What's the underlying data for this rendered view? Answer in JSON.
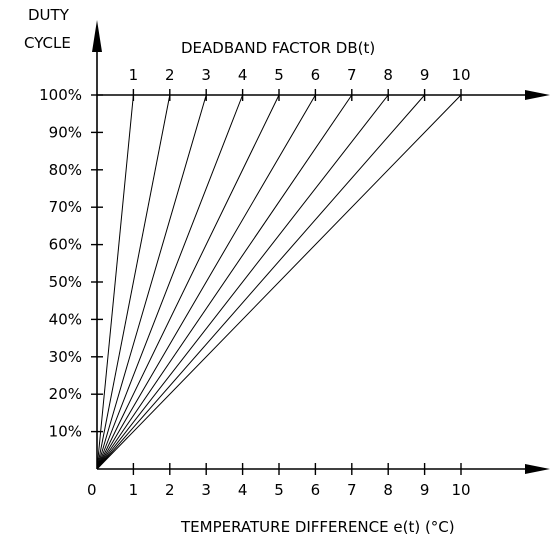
{
  "chart_data": {
    "type": "line",
    "title": "",
    "ylabel_lines": [
      "DUTY",
      "CYCLE"
    ],
    "top_axis_label": "DEADBAND FACTOR DB(t)",
    "xlabel": "TEMPERATURE DIFFERENCE e(t) (°C)",
    "x_origin_label": "0",
    "x_ticks": [
      "1",
      "2",
      "3",
      "4",
      "5",
      "6",
      "7",
      "8",
      "9",
      "10"
    ],
    "y_ticks": [
      "10%",
      "20%",
      "30%",
      "40%",
      "50%",
      "60%",
      "70%",
      "80%",
      "90%",
      "100%"
    ],
    "xlim": [
      0,
      10
    ],
    "ylim": [
      0,
      100
    ],
    "grid": false,
    "series": [
      {
        "name": "1",
        "x": [
          0,
          1
        ],
        "y": [
          0,
          100
        ]
      },
      {
        "name": "2",
        "x": [
          0,
          2
        ],
        "y": [
          0,
          100
        ]
      },
      {
        "name": "3",
        "x": [
          0,
          3
        ],
        "y": [
          0,
          100
        ]
      },
      {
        "name": "4",
        "x": [
          0,
          4
        ],
        "y": [
          0,
          100
        ]
      },
      {
        "name": "5",
        "x": [
          0,
          5
        ],
        "y": [
          0,
          100
        ]
      },
      {
        "name": "6",
        "x": [
          0,
          6
        ],
        "y": [
          0,
          100
        ]
      },
      {
        "name": "7",
        "x": [
          0,
          7
        ],
        "y": [
          0,
          100
        ]
      },
      {
        "name": "8",
        "x": [
          0,
          8
        ],
        "y": [
          0,
          100
        ]
      },
      {
        "name": "9",
        "x": [
          0,
          9
        ],
        "y": [
          0,
          100
        ]
      },
      {
        "name": "10",
        "x": [
          0,
          10
        ],
        "y": [
          0,
          100
        ]
      }
    ]
  }
}
